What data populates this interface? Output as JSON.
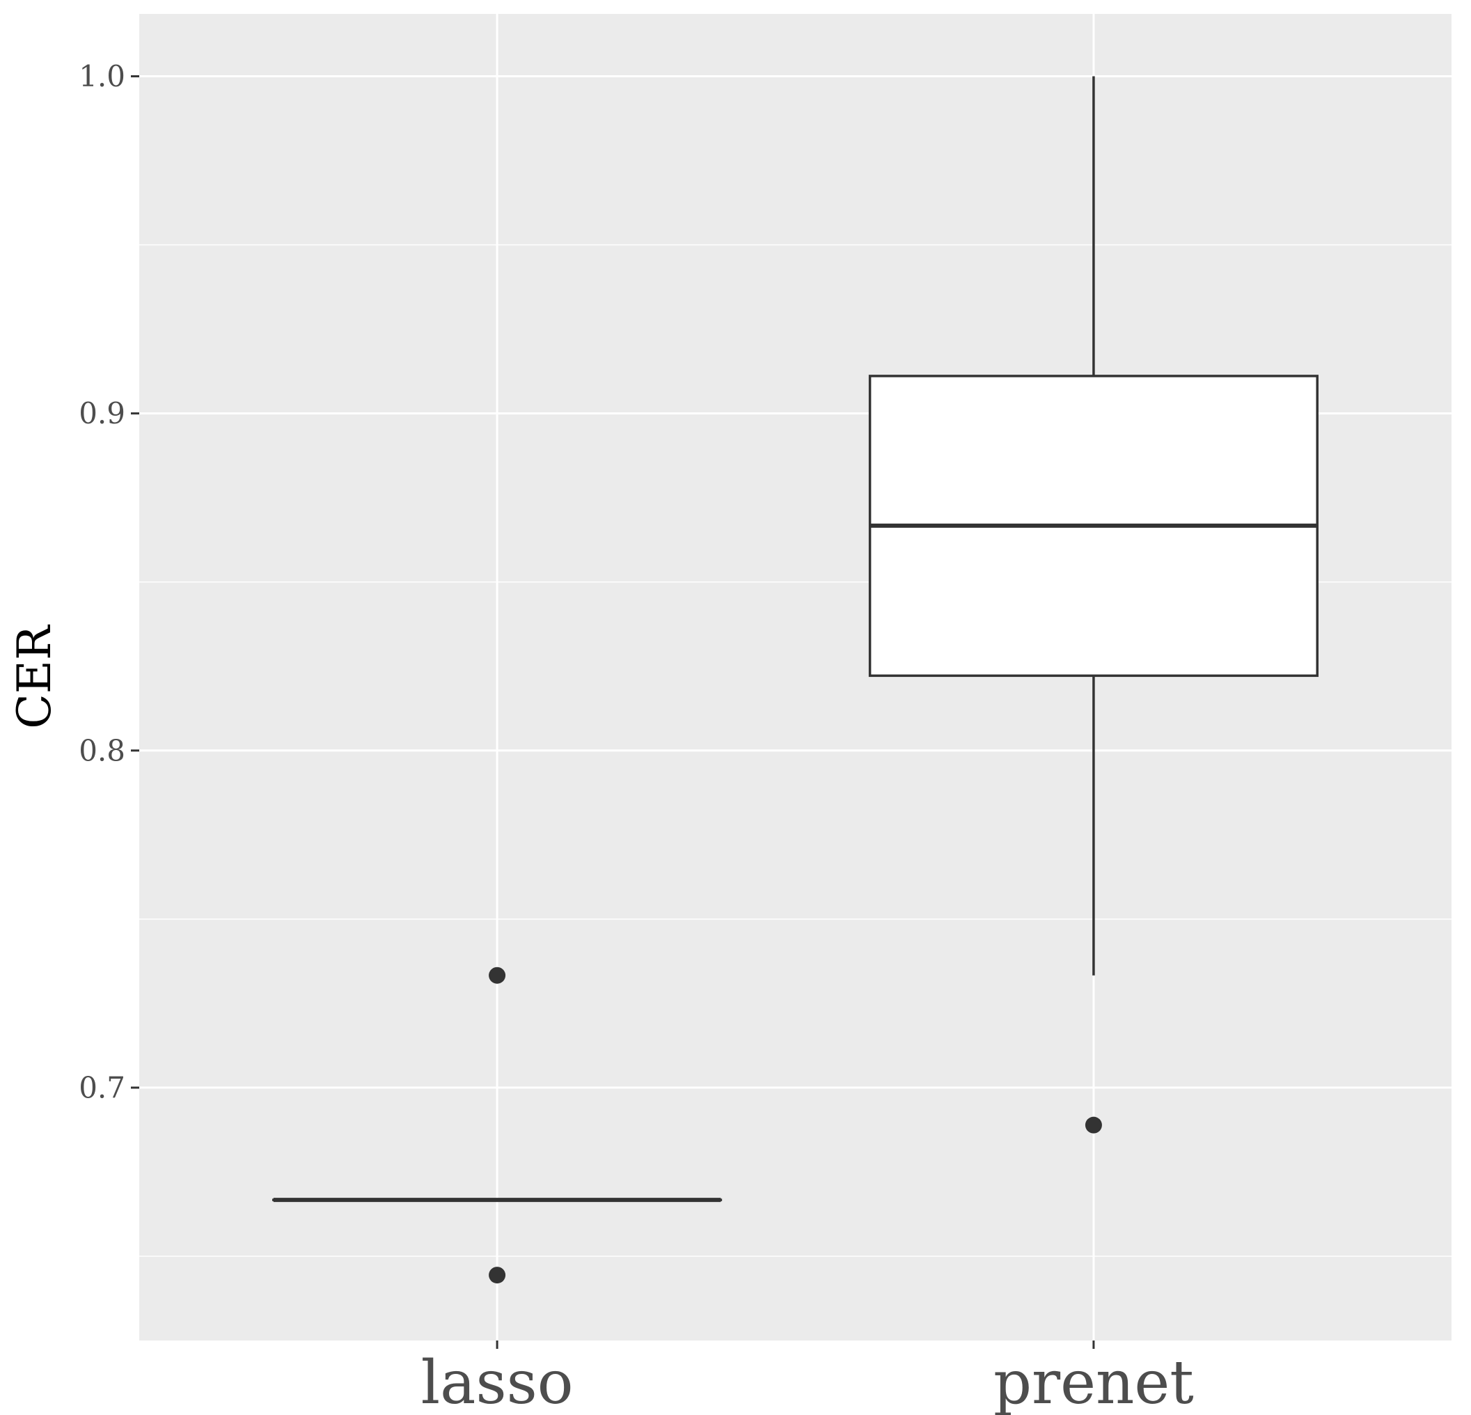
{
  "chart_data": {
    "type": "box",
    "title": "",
    "xlabel": "",
    "ylabel": "CER",
    "ylim": [
      0.625,
      1.0185
    ],
    "yticks": [
      0.7,
      0.8,
      0.9,
      1.0
    ],
    "ytick_labels": [
      "0.7",
      "0.8",
      "0.9",
      "1.0"
    ],
    "yminor_ticks": [
      0.65,
      0.75,
      0.85,
      0.95
    ],
    "grid": true,
    "legend": "none",
    "categories": [
      "lasso",
      "prenet"
    ],
    "boxes": [
      {
        "category": "lasso",
        "lower_whisker": 0.6667,
        "q1": 0.6667,
        "median": 0.6667,
        "q3": 0.6667,
        "upper_whisker": 0.6667,
        "outliers": [
          0.7333,
          0.6444
        ]
      },
      {
        "category": "prenet",
        "lower_whisker": 0.7333,
        "q1": 0.8222,
        "median": 0.8667,
        "q3": 0.9111,
        "upper_whisker": 1.0,
        "outliers": [
          0.6889
        ]
      }
    ],
    "colors": {
      "panel": "#ebebeb",
      "grid": "#ffffff",
      "box_fill": "#ffffff",
      "box_line": "#333333",
      "outlier": "#333333",
      "tick_text": "#4d4d4d",
      "axis_title": "#000000"
    }
  }
}
